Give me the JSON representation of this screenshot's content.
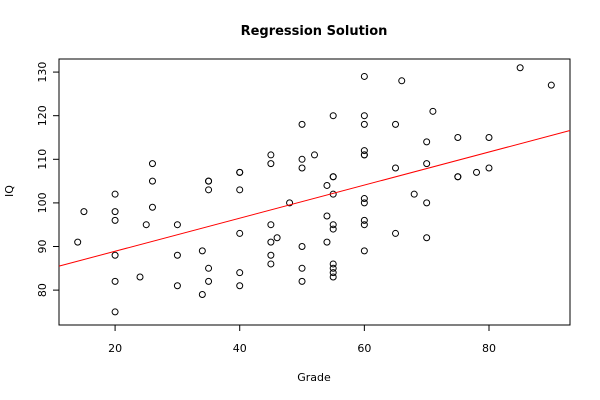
{
  "chart_data": {
    "type": "scatter",
    "title": "Regression Solution",
    "xlabel": "Grade",
    "ylabel": "IQ",
    "xlim": [
      11,
      93
    ],
    "ylim": [
      72,
      133
    ],
    "x_ticks": [
      20,
      40,
      60,
      80
    ],
    "y_ticks": [
      80,
      90,
      100,
      110,
      120,
      130
    ],
    "grid": false,
    "legend": "none",
    "colors": {
      "points": "#000000",
      "regression_line": "#ff0000",
      "frame": "#000000"
    },
    "points": [
      [
        14,
        91
      ],
      [
        15,
        98
      ],
      [
        20,
        102
      ],
      [
        20,
        98
      ],
      [
        20,
        96
      ],
      [
        20,
        88
      ],
      [
        20,
        82
      ],
      [
        20,
        75
      ],
      [
        24,
        83
      ],
      [
        25,
        95
      ],
      [
        26,
        109
      ],
      [
        26,
        105
      ],
      [
        26,
        99
      ],
      [
        30,
        95
      ],
      [
        30,
        88
      ],
      [
        30,
        81
      ],
      [
        34,
        89
      ],
      [
        34,
        79
      ],
      [
        35,
        105
      ],
      [
        35,
        105
      ],
      [
        35,
        103
      ],
      [
        35,
        85
      ],
      [
        35,
        82
      ],
      [
        40,
        107
      ],
      [
        40,
        107
      ],
      [
        40,
        103
      ],
      [
        40,
        93
      ],
      [
        40,
        84
      ],
      [
        40,
        81
      ],
      [
        45,
        111
      ],
      [
        45,
        109
      ],
      [
        45,
        95
      ],
      [
        45,
        91
      ],
      [
        45,
        88
      ],
      [
        45,
        86
      ],
      [
        46,
        92
      ],
      [
        48,
        100
      ],
      [
        50,
        118
      ],
      [
        50,
        110
      ],
      [
        50,
        108
      ],
      [
        50,
        90
      ],
      [
        50,
        85
      ],
      [
        50,
        82
      ],
      [
        52,
        111
      ],
      [
        54,
        104
      ],
      [
        54,
        97
      ],
      [
        54,
        91
      ],
      [
        55,
        120
      ],
      [
        55,
        106
      ],
      [
        55,
        106
      ],
      [
        55,
        102
      ],
      [
        55,
        95
      ],
      [
        55,
        94
      ],
      [
        55,
        86
      ],
      [
        55,
        85
      ],
      [
        55,
        84
      ],
      [
        55,
        83
      ],
      [
        60,
        129
      ],
      [
        60,
        120
      ],
      [
        60,
        118
      ],
      [
        60,
        112
      ],
      [
        60,
        111
      ],
      [
        60,
        111
      ],
      [
        60,
        101
      ],
      [
        60,
        100
      ],
      [
        60,
        96
      ],
      [
        60,
        95
      ],
      [
        60,
        89
      ],
      [
        65,
        118
      ],
      [
        65,
        108
      ],
      [
        65,
        93
      ],
      [
        66,
        128
      ],
      [
        68,
        102
      ],
      [
        70,
        114
      ],
      [
        70,
        109
      ],
      [
        70,
        100
      ],
      [
        70,
        92
      ],
      [
        71,
        121
      ],
      [
        75,
        115
      ],
      [
        75,
        106
      ],
      [
        75,
        106
      ],
      [
        78,
        107
      ],
      [
        80,
        115
      ],
      [
        80,
        108
      ],
      [
        85,
        131
      ],
      [
        90,
        127
      ]
    ],
    "regression_line": {
      "x": [
        11,
        93
      ],
      "y": [
        85.5,
        116.6
      ]
    }
  }
}
